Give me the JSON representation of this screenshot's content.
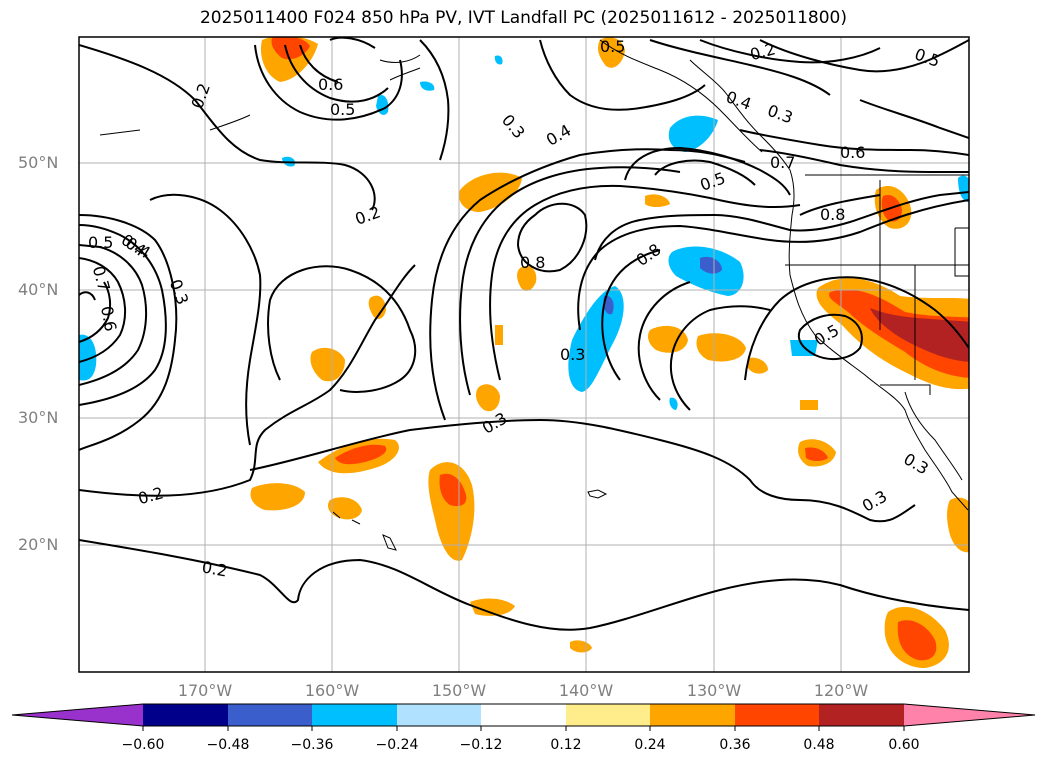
{
  "title": "2025011400 F024 850 hPa PV, IVT Landfall PC (2025011612 - 2025011800)",
  "lat_labels": [
    "50°N",
    "40°N",
    "30°N",
    "20°N"
  ],
  "lon_labels": [
    "170°W",
    "160°W",
    "150°W",
    "140°W",
    "130°W",
    "120°W"
  ],
  "contour_labels": [
    "0.2",
    "0.6",
    "0.5",
    "0.3",
    "0.4",
    "0.5",
    "0.4",
    "0.3",
    "0.2",
    "0.5",
    "0.6",
    "0.7",
    "0.8",
    "0.5",
    "0.4",
    "0.3",
    "0.2",
    "0.5",
    "0.4",
    "0.7",
    "0.6",
    "0.3",
    "0.8",
    "0.8",
    "0.5",
    "0.3",
    "0.2",
    "0.2",
    "0.3",
    "0.3"
  ],
  "colorbar": {
    "ticks": [
      "−0.60",
      "−0.48",
      "−0.36",
      "−0.24",
      "−0.12",
      "0.12",
      "0.24",
      "0.36",
      "0.48",
      "0.60"
    ],
    "colors": [
      "#9932cc",
      "#00008b",
      "#3a5fcd",
      "#00bfff",
      "#b0e2ff",
      "#ffffff",
      "#ffec8b",
      "#ffa500",
      "#ff4500",
      "#b22222",
      "#ff82ab"
    ]
  },
  "colors": {
    "land_line": "#000000",
    "grid": "#b0b0b0",
    "contour": "#000000"
  }
}
